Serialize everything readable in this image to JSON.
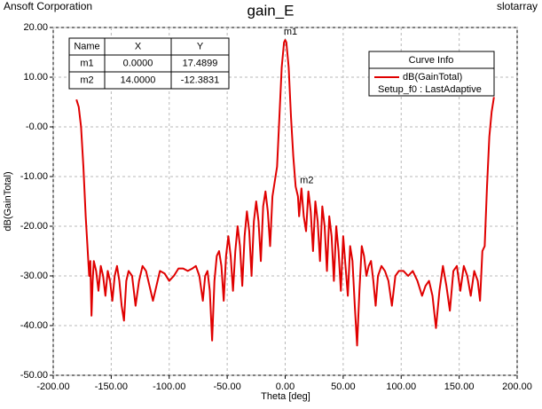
{
  "chart_data": {
    "type": "line",
    "title": "gain_E",
    "company": "Ansoft Corporation",
    "project": "slotarray",
    "x_label": "Theta [deg]",
    "y_label": "dB(GainTotal)",
    "xlim": [
      -200,
      200
    ],
    "xticks": [
      {
        "value": -200,
        "label": "-200.00"
      },
      {
        "value": -150,
        "label": "-150.00"
      },
      {
        "value": -100,
        "label": "-100.00"
      },
      {
        "value": -50,
        "label": "-50.00"
      },
      {
        "value": 0,
        "label": "0.00"
      },
      {
        "value": 50,
        "label": "50.00"
      },
      {
        "value": 100,
        "label": "100.00"
      },
      {
        "value": 150,
        "label": "150.00"
      },
      {
        "value": 200,
        "label": "200.00"
      }
    ],
    "ylim": [
      -50,
      20
    ],
    "yticks": [
      {
        "value": 20,
        "label": "20.00"
      },
      {
        "value": 10,
        "label": "10.00"
      },
      {
        "value": 0,
        "label": "-0.00"
      },
      {
        "value": -10,
        "label": "-10.00"
      },
      {
        "value": -20,
        "label": "-20.00"
      },
      {
        "value": -30,
        "label": "-30.00"
      },
      {
        "value": -40,
        "label": "-40.00"
      },
      {
        "value": -50,
        "label": "-50.00"
      }
    ],
    "grid": true,
    "x": [
      -180,
      -178,
      -176,
      -174,
      -172,
      -170,
      -169,
      -168,
      -167,
      -166,
      -165,
      -163,
      -161,
      -159,
      -157,
      -155,
      -153,
      -151,
      -149,
      -147,
      -145,
      -143,
      -141,
      -139,
      -137,
      -135,
      -132,
      -129,
      -126,
      -123,
      -120,
      -117,
      -114,
      -111,
      -108,
      -104,
      -100,
      -96,
      -92,
      -88,
      -84,
      -80,
      -77,
      -74,
      -71,
      -69,
      -67,
      -65,
      -63,
      -61,
      -59,
      -57,
      -55,
      -53,
      -51,
      -49,
      -47,
      -45,
      -43,
      -41,
      -39,
      -37,
      -35,
      -33,
      -31,
      -29,
      -27,
      -25,
      -23,
      -21,
      -19,
      -17,
      -15,
      -13,
      -11,
      -9,
      -7,
      -5,
      -3,
      -1,
      0,
      1,
      3,
      5,
      7,
      9,
      11,
      12,
      14,
      16,
      18,
      20,
      22,
      24,
      26,
      28,
      30,
      32,
      34,
      36,
      38,
      40,
      42,
      44,
      46,
      48,
      50,
      52,
      54,
      56,
      58,
      60,
      62,
      64,
      66,
      68,
      70,
      72,
      74,
      76,
      78,
      80,
      83,
      86,
      89,
      92,
      95,
      98,
      102,
      106,
      110,
      114,
      118,
      121,
      124,
      127,
      130,
      133,
      136,
      139,
      142,
      145,
      148,
      151,
      154,
      157,
      160,
      163,
      166,
      168,
      170,
      172,
      174,
      176,
      178,
      180
    ],
    "legend_title": "Curve Info",
    "legend_subtitle": "Setup_f0 : LastAdaptive",
    "series": [
      {
        "name": "dB(GainTotal)",
        "color": "#e00000",
        "values": [
          5.5,
          4,
          0,
          -8,
          -18,
          -26,
          -30,
          -27,
          -38,
          -31,
          -27,
          -29,
          -33,
          -28,
          -30,
          -34,
          -29,
          -31,
          -35,
          -30,
          -28,
          -31,
          -36,
          -39,
          -31,
          -29,
          -30,
          -36,
          -31,
          -28,
          -29,
          -32,
          -35,
          -32,
          -29,
          -29.5,
          -31,
          -30,
          -28.5,
          -28.5,
          -29,
          -28.5,
          -28,
          -30,
          -35,
          -30,
          -29,
          -33,
          -43,
          -31,
          -26,
          -25,
          -28,
          -35,
          -26,
          -22,
          -26,
          -33,
          -25,
          -20,
          -24,
          -32,
          -22,
          -17,
          -21,
          -30,
          -19,
          -15,
          -19,
          -27,
          -16,
          -13,
          -17,
          -24,
          -14,
          -11,
          -8,
          2,
          12,
          17,
          17.4899,
          17,
          12,
          2,
          -6,
          -12,
          -14,
          -18,
          -12.3831,
          -18,
          -21,
          -13,
          -17,
          -25,
          -15,
          -19,
          -27,
          -16,
          -20,
          -29,
          -18,
          -22,
          -31,
          -20,
          -25,
          -33,
          -22,
          -28,
          -34,
          -24,
          -27,
          -36,
          -44,
          -33,
          -24,
          -26,
          -30,
          -28,
          -27,
          -31,
          -36,
          -30,
          -28,
          -29,
          -31,
          -36,
          -30,
          -29,
          -29,
          -30,
          -29,
          -31,
          -34,
          -32,
          -31,
          -34,
          -40.5,
          -33,
          -28,
          -32,
          -37,
          -29,
          -28,
          -33,
          -28,
          -30,
          -34,
          -29,
          -31,
          -35,
          -25,
          -24,
          -12,
          -2,
          3,
          6
        ]
      }
    ],
    "marker_headers": [
      "Name",
      "X",
      "Y"
    ],
    "markers": [
      {
        "name": "m1",
        "x": {
          "value": 0,
          "label": "0.0000"
        },
        "y": {
          "value": 17.4899,
          "label": "17.4899"
        }
      },
      {
        "name": "m2",
        "x": {
          "value": 14,
          "label": "14.0000"
        },
        "y": {
          "value": -12.3831,
          "label": "-12.3831"
        }
      }
    ]
  }
}
